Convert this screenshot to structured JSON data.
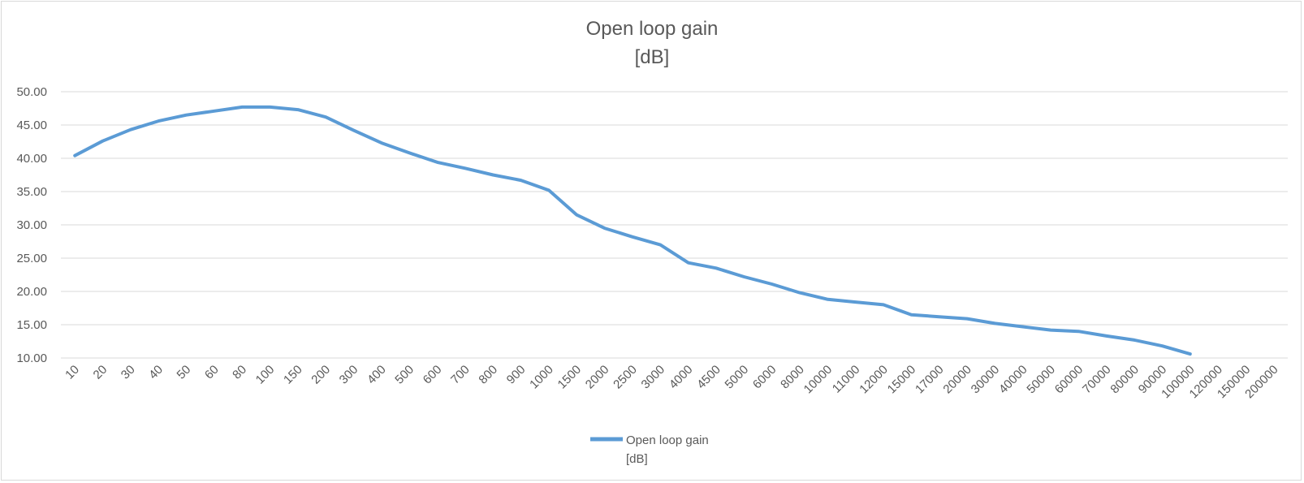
{
  "chart_data": {
    "type": "line",
    "title_lines": [
      "Open loop gain",
      "[dB]"
    ],
    "categories": [
      "10",
      "20",
      "30",
      "40",
      "50",
      "60",
      "80",
      "100",
      "150",
      "200",
      "300",
      "400",
      "500",
      "600",
      "700",
      "800",
      "900",
      "1000",
      "1500",
      "2000",
      "2500",
      "3000",
      "4000",
      "4500",
      "5000",
      "6000",
      "8000",
      "10000",
      "11000",
      "12000",
      "15000",
      "17000",
      "20000",
      "30000",
      "40000",
      "50000",
      "60000",
      "70000",
      "80000",
      "90000",
      "100000",
      "120000",
      "150000",
      "200000"
    ],
    "series": [
      {
        "name_lines": [
          "Open loop gain",
          "[dB]"
        ],
        "color": "#5b9bd5",
        "values": [
          40.4,
          42.6,
          44.3,
          45.6,
          46.5,
          47.1,
          47.7,
          47.7,
          47.3,
          46.2,
          44.2,
          42.3,
          40.8,
          39.4,
          38.5,
          37.5,
          36.7,
          35.2,
          31.5,
          29.5,
          28.2,
          27.0,
          24.3,
          23.5,
          22.2,
          21.1,
          19.8,
          18.8,
          18.4,
          18.0,
          16.5,
          16.2,
          15.9,
          15.2,
          14.7,
          14.2,
          14.0,
          13.3,
          12.7,
          11.8,
          10.6,
          null,
          null,
          null
        ]
      }
    ],
    "ylim": [
      10,
      50
    ],
    "yticks": [
      "10.00",
      "15.00",
      "20.00",
      "25.00",
      "30.00",
      "35.00",
      "40.00",
      "45.00",
      "50.00"
    ],
    "grid": true,
    "legend": "bottom"
  }
}
